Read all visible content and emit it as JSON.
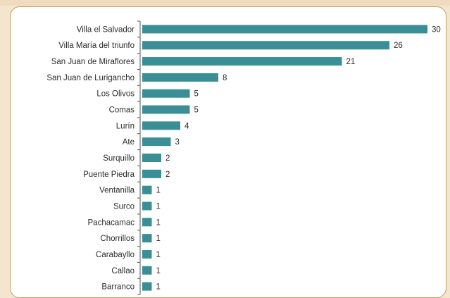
{
  "colors": {
    "bar": "#3a8e95",
    "axis": "#555555",
    "card_border": "#c99b5a",
    "background": "#f3e6cf"
  },
  "chart_data": {
    "type": "bar",
    "orientation": "horizontal",
    "categories": [
      "Villa el Salvador",
      "Villa María del triunfo",
      "San Juan de Miraflores",
      "San Juan de Lurigancho",
      "Los Olivos",
      "Comas",
      "Lurín",
      "Ate",
      "Surquillo",
      "Puente Piedra",
      "Ventanilla",
      "Surco",
      "Pachacamac",
      "Chorrillos",
      "Carabayllo",
      "Callao",
      "Barranco"
    ],
    "values": [
      30,
      26,
      21,
      8,
      5,
      5,
      4,
      3,
      2,
      2,
      1,
      1,
      1,
      1,
      1,
      1,
      1
    ],
    "title": "",
    "xlabel": "",
    "ylabel": "",
    "xlim": [
      0,
      30
    ],
    "grid": false,
    "legend": "none"
  }
}
